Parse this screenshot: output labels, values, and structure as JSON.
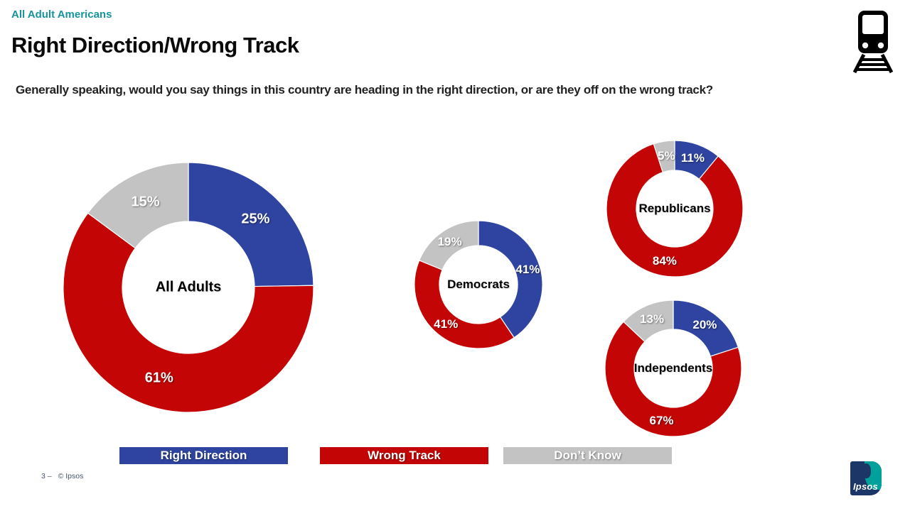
{
  "header": {
    "eyebrow": "All Adult Americans",
    "title": "Right Direction/Wrong Track",
    "subtitle": "Generally speaking, would you say things in this country are heading in the right direction, or are they off on the wrong track?"
  },
  "chart_data": {
    "type": "pie",
    "variant": "donut-multiple",
    "title": "Right Direction/Wrong Track",
    "series_labels": [
      "Right Direction",
      "Wrong Track",
      "Don’t Know"
    ],
    "colors": [
      "#2F44A0",
      "#C40505",
      "#C3C3C3"
    ],
    "value_suffix": "%",
    "label_color": "#FFFFFF",
    "legend_position": "bottom",
    "charts": [
      {
        "group": "All Adults",
        "values": [
          25,
          61,
          15
        ]
      },
      {
        "group": "Democrats",
        "values": [
          41,
          41,
          19
        ]
      },
      {
        "group": "Republicans",
        "values": [
          11,
          84,
          5
        ]
      },
      {
        "group": "Independents",
        "values": [
          20,
          67,
          13
        ]
      }
    ]
  },
  "footer": {
    "page": "3 –",
    "copyright": "© Ipsos"
  },
  "logo": {
    "text": "Ipsos"
  }
}
